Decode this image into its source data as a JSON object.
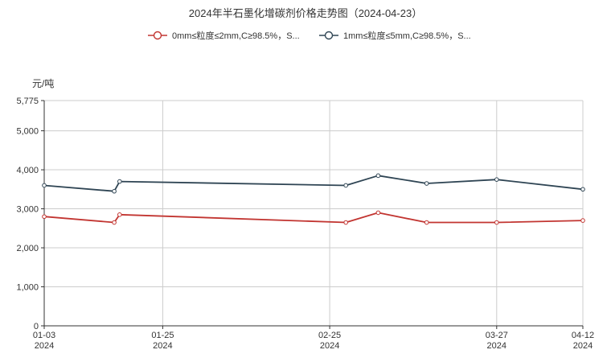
{
  "chart_data": {
    "type": "line",
    "title": "2024年半石墨化增碳剂价格走势图（2024-04-23）",
    "ylabel": "元/吨",
    "ylim": [
      0,
      5775
    ],
    "yticks": [
      "5,775",
      "5,000",
      "4,000",
      "3,000",
      "2,000",
      "1,000",
      "0"
    ],
    "ytick_values": [
      5775,
      5000,
      4000,
      3000,
      2000,
      1000,
      0
    ],
    "x_range": [
      "2024-01-03",
      "2024-04-12"
    ],
    "xticks": [
      {
        "date": "2024-01-03",
        "label": "01-03",
        "year": "2024"
      },
      {
        "date": "2024-01-25",
        "label": "01-25",
        "year": "2024"
      },
      {
        "date": "2024-02-25",
        "label": "02-25",
        "year": "2024"
      },
      {
        "date": "2024-03-27",
        "label": "03-27",
        "year": "2024"
      },
      {
        "date": "2024-04-12",
        "label": "04-12",
        "year": "2024"
      }
    ],
    "grid": true,
    "legend_position": "top-center",
    "series": [
      {
        "name": "0mm≤粒度≤2mm,C≥98.5%，S...",
        "color": "#c23531",
        "points": [
          {
            "x": "2024-01-03",
            "y": 2800
          },
          {
            "x": "2024-01-16",
            "y": 2650
          },
          {
            "x": "2024-01-17",
            "y": 2850
          },
          {
            "x": "2024-02-28",
            "y": 2650
          },
          {
            "x": "2024-03-05",
            "y": 2900
          },
          {
            "x": "2024-03-14",
            "y": 2650
          },
          {
            "x": "2024-03-27",
            "y": 2650
          },
          {
            "x": "2024-04-12",
            "y": 2700
          }
        ]
      },
      {
        "name": "1mm≤粒度≤5mm,C≥98.5%，S...",
        "color": "#2f4554",
        "points": [
          {
            "x": "2024-01-03",
            "y": 3600
          },
          {
            "x": "2024-01-16",
            "y": 3450
          },
          {
            "x": "2024-01-17",
            "y": 3700
          },
          {
            "x": "2024-02-28",
            "y": 3600
          },
          {
            "x": "2024-03-05",
            "y": 3850
          },
          {
            "x": "2024-03-14",
            "y": 3650
          },
          {
            "x": "2024-03-27",
            "y": 3750
          },
          {
            "x": "2024-04-12",
            "y": 3500
          }
        ]
      }
    ]
  }
}
